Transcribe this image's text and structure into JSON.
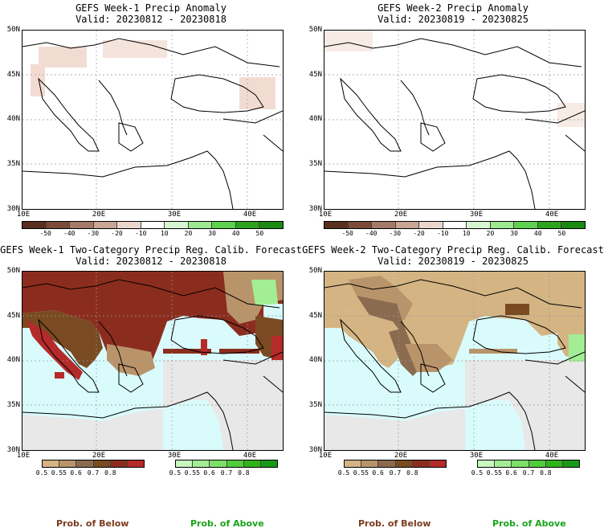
{
  "panels": [
    {
      "title": "GEFS Week-1 Precip Anomaly",
      "valid": "Valid: 20230812 - 20230818"
    },
    {
      "title": "GEFS Week-2 Precip Anomaly",
      "valid": "Valid: 20230819 - 20230825"
    },
    {
      "title": "GEFS Week-1 Two-Category Precip Reg. Calib. Forecast",
      "valid": "Valid: 20230812 - 20230818"
    },
    {
      "title": "GEFS Week-2 Two-Category Precip Reg. Calib. Forecast",
      "valid": "Valid: 20230819 - 20230825"
    }
  ],
  "axes": {
    "lat_labels": [
      "50N",
      "45N",
      "40N",
      "35N",
      "30N"
    ],
    "lon_labels": [
      "10E",
      "20E",
      "30E",
      "40E"
    ]
  },
  "anomaly_colorbar": {
    "ticks": [
      "-50",
      "-40",
      "-30",
      "-20",
      "-10",
      "10",
      "20",
      "30",
      "40",
      "50"
    ],
    "colors": [
      "#5a2e1e",
      "#7b4a38",
      "#a67a68",
      "#c9a596",
      "#ebd6ce",
      "#ffffff",
      "#d6f5d0",
      "#9ee890",
      "#5ed14e",
      "#2ea31f",
      "#1a8a10"
    ]
  },
  "below_colorbar": {
    "ticks": [
      "0.5",
      "0.55",
      "0.6",
      "0.7",
      "0.8"
    ],
    "colors": [
      "#d4b483",
      "#b9946a",
      "#8a6b4f",
      "#7a4a22",
      "#8b2d1e",
      "#b52a2a"
    ]
  },
  "above_colorbar": {
    "ticks": [
      "0.5",
      "0.55",
      "0.6",
      "0.7",
      "0.8"
    ],
    "colors": [
      "#c8f7c0",
      "#a3ee95",
      "#7ddf6a",
      "#51cc3d",
      "#2fb21c",
      "#19991a"
    ]
  },
  "legend": {
    "below_label": "Prob. of Below",
    "above_label": "Prob. of Above",
    "below_color": "#7a3b1f",
    "above_color": "#19a319"
  },
  "colors": {
    "sea_cyan": "#d9fbfb",
    "no_data_gray": "#e8e8e8"
  }
}
